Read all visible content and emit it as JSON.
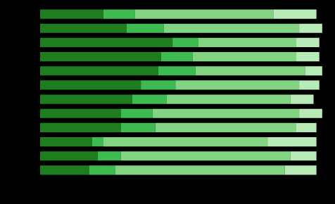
{
  "chart_data": {
    "type": "bar",
    "orientation": "horizontal",
    "stacked": true,
    "categories": [
      null,
      null,
      null,
      null,
      null,
      null,
      null,
      null,
      null,
      null,
      null,
      null
    ],
    "series": [
      {
        "color": "#1e7d1e",
        "values": [
          22,
          30,
          46,
          42,
          41,
          35,
          32,
          28,
          28,
          18,
          20,
          17
        ]
      },
      {
        "color": "#3dba50",
        "values": [
          11,
          13,
          9,
          11,
          13,
          12,
          12,
          11,
          12,
          4,
          8,
          9
        ]
      },
      {
        "color": "#82d482",
        "values": [
          48,
          47,
          34,
          36,
          38,
          43,
          43,
          51,
          49,
          57,
          59,
          59
        ]
      },
      {
        "color": "#b8ebb8",
        "values": [
          15,
          8,
          8,
          8,
          6,
          7,
          8,
          8,
          7,
          17,
          9,
          11
        ]
      }
    ],
    "xlim": [
      0,
      100
    ],
    "grid": false,
    "tick_labels": false
  }
}
